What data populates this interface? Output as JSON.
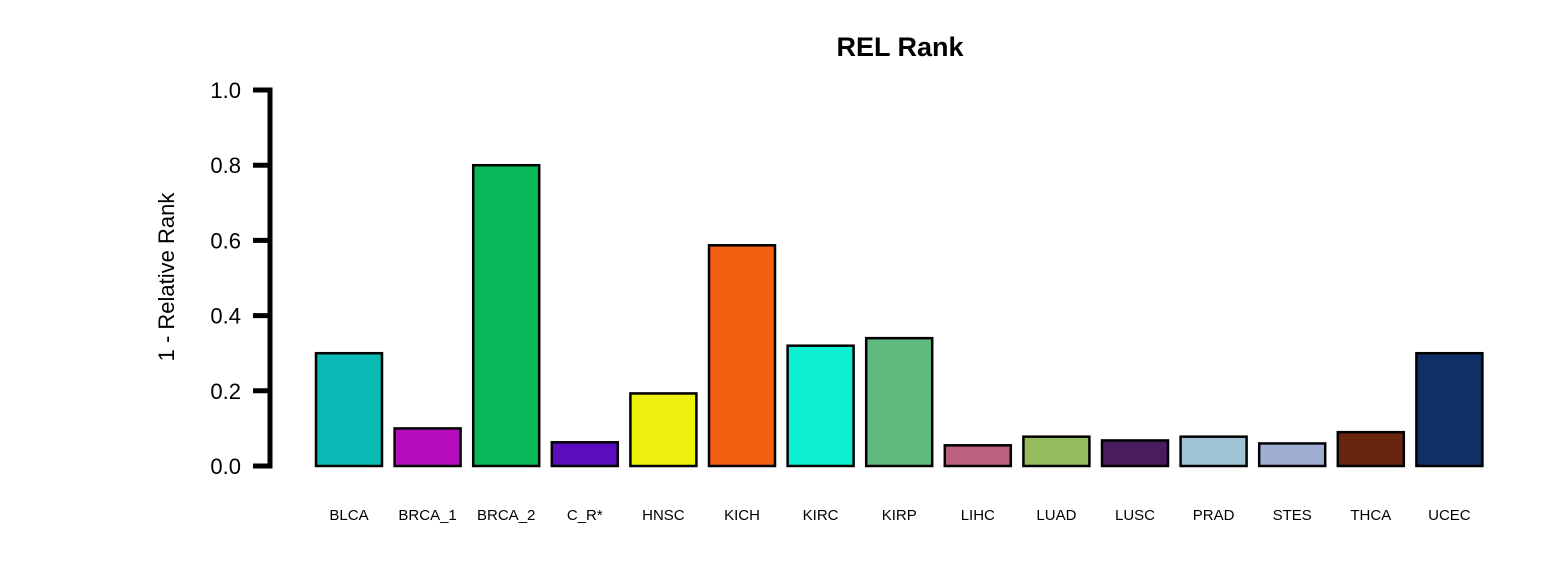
{
  "chart_data": {
    "type": "bar",
    "title": "REL Rank",
    "xlabel": "",
    "ylabel": "1 - Relative Rank",
    "ylim": [
      0,
      1
    ],
    "yticks": [
      "0.0",
      "0.2",
      "0.4",
      "0.6",
      "0.8",
      "1.0"
    ],
    "ytick_values": [
      0,
      0.2,
      0.4,
      0.6,
      0.8,
      1.0
    ],
    "grid": false,
    "categories": [
      "BLCA",
      "BRCA_1",
      "BRCA_2",
      "C_R*",
      "HNSC",
      "KICH",
      "KIRC",
      "KIRP",
      "LIHC",
      "LUAD",
      "LUSC",
      "PRAD",
      "STES",
      "THCA",
      "UCEC"
    ],
    "values": [
      0.3,
      0.1,
      0.8,
      0.063,
      0.193,
      0.587,
      0.32,
      0.34,
      0.055,
      0.078,
      0.068,
      0.078,
      0.06,
      0.09,
      0.3
    ],
    "colors": [
      "#0ABAB5",
      "#B40CBE",
      "#08B858",
      "#5C0CBE",
      "#EEF00E",
      "#F26012",
      "#0EF0D2",
      "#60BA80",
      "#BC6082",
      "#96BC60",
      "#481C5E",
      "#A0C4D6",
      "#A0AED4",
      "#68260E",
      "#0E3066"
    ]
  }
}
